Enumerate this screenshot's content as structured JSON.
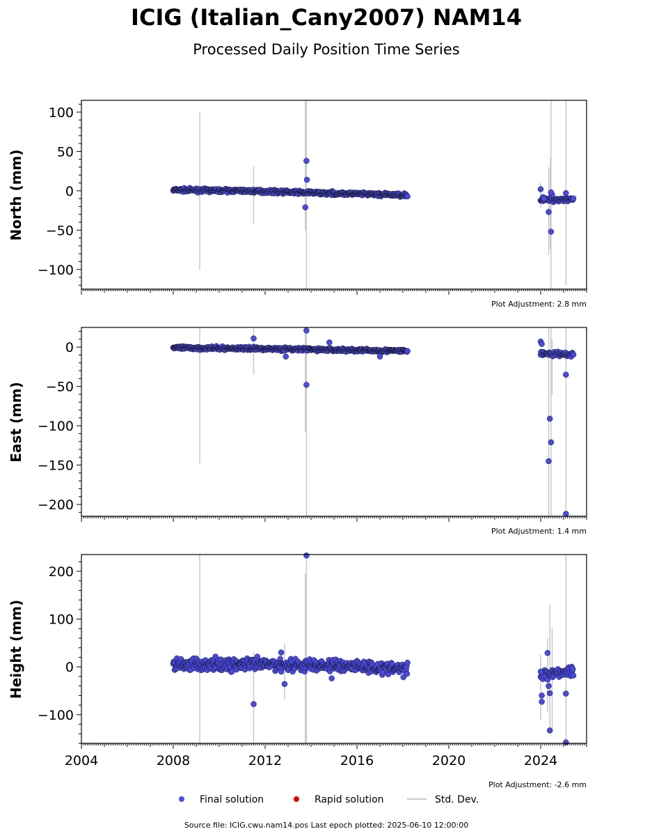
{
  "title": "ICIG (Italian_Cany2007) NAM14",
  "subtitle": "Processed Daily Position Time Series",
  "source_line": "Source file: ICIG.cwu.nam14.pos  Last epoch plotted: 2025-06-10 12:00:00",
  "legend": [
    {
      "label": "Final solution",
      "color": "#4a4ae6",
      "marker": "circle"
    },
    {
      "label": "Rapid solution",
      "color": "#e00000",
      "marker": "circle"
    },
    {
      "label": "Std. Dev.",
      "color": "#c8c8c8",
      "marker": "line"
    }
  ],
  "chart_data": [
    {
      "type": "scatter",
      "ylabel": "North (mm)",
      "adjustment": "Plot Adjustment: 2.8 mm",
      "xlim": [
        2004,
        2026
      ],
      "ylim": [
        -125,
        115
      ],
      "yticks": [
        100,
        50,
        0,
        -50,
        -100
      ],
      "ytick_labels": [
        "100",
        "50",
        "0",
        "−50",
        "−100"
      ],
      "trend": [
        [
          2008.0,
          1.0
        ],
        [
          2011.0,
          0.0
        ],
        [
          2014.0,
          -2.5
        ],
        [
          2018.2,
          -5.5
        ]
      ],
      "scatter_sd": 1.4,
      "late_trend": [
        [
          2024.0,
          -12.0
        ],
        [
          2025.45,
          -10.0
        ]
      ],
      "late_sd": 2.0,
      "outliers": [
        [
          2013.8,
          38
        ],
        [
          2013.82,
          14
        ],
        [
          2013.75,
          -21
        ],
        [
          2024.0,
          2
        ],
        [
          2024.1,
          -8
        ],
        [
          2024.15,
          -10
        ],
        [
          2024.35,
          -27
        ],
        [
          2024.45,
          -52
        ],
        [
          2024.5,
          -5
        ],
        [
          2024.45,
          -2
        ],
        [
          2025.1,
          -3
        ]
      ],
      "errorbars": [
        [
          2009.15,
          -100,
          100
        ],
        [
          2011.5,
          -42,
          31
        ],
        [
          2013.75,
          -50,
          115
        ],
        [
          2013.8,
          -125,
          115
        ],
        [
          2024.0,
          -22,
          10
        ],
        [
          2024.35,
          -82,
          30
        ],
        [
          2024.45,
          -125,
          115
        ],
        [
          2024.42,
          -75,
          42
        ],
        [
          2025.1,
          -120,
          115
        ]
      ]
    },
    {
      "type": "scatter",
      "ylabel": "East (mm)",
      "adjustment": "Plot Adjustment: 1.4 mm",
      "xlim": [
        2004,
        2026
      ],
      "ylim": [
        -215,
        25
      ],
      "yticks": [
        0,
        -50,
        -100,
        -150,
        -200
      ],
      "ytick_labels": [
        "0",
        "−50",
        "−100",
        "−150",
        "−200"
      ],
      "trend": [
        [
          2008.0,
          -1.0
        ],
        [
          2012.0,
          -2.0
        ],
        [
          2016.0,
          -4.0
        ],
        [
          2018.2,
          -5.0
        ]
      ],
      "scatter_sd": 1.4,
      "late_trend": [
        [
          2024.0,
          -8.0
        ],
        [
          2025.45,
          -10.0
        ]
      ],
      "late_sd": 2.0,
      "outliers": [
        [
          2011.5,
          11
        ],
        [
          2013.8,
          21
        ],
        [
          2013.8,
          -48
        ],
        [
          2014.8,
          6
        ],
        [
          2012.9,
          -12
        ],
        [
          2024.0,
          7
        ],
        [
          2024.05,
          4
        ],
        [
          2024.35,
          -145
        ],
        [
          2024.4,
          -91
        ],
        [
          2024.45,
          -121
        ],
        [
          2025.1,
          -35
        ],
        [
          2025.1,
          -212
        ],
        [
          2017.0,
          -12
        ]
      ],
      "errorbars": [
        [
          2009.15,
          -148,
          25
        ],
        [
          2011.5,
          -35,
          25
        ],
        [
          2013.75,
          -108,
          25
        ],
        [
          2013.8,
          -215,
          25
        ],
        [
          2024.35,
          -215,
          25
        ],
        [
          2024.45,
          -215,
          25
        ],
        [
          2024.5,
          -60,
          10
        ],
        [
          2025.1,
          -215,
          25
        ]
      ]
    },
    {
      "type": "scatter",
      "ylabel": "Height (mm)",
      "adjustment": "Plot Adjustment: -2.6 mm",
      "xlim": [
        2004,
        2026
      ],
      "ylim": [
        -160,
        235
      ],
      "yticks": [
        200,
        100,
        0,
        -100
      ],
      "ytick_labels": [
        "200",
        "100",
        "0",
        "−100"
      ],
      "xticks": [
        2004,
        2008,
        2012,
        2016,
        2020,
        2024
      ],
      "trend": [
        [
          2008.0,
          5.0
        ],
        [
          2012.0,
          5.0
        ],
        [
          2016.0,
          2.0
        ],
        [
          2018.2,
          -5.0
        ]
      ],
      "scatter_sd": 9.0,
      "late_trend": [
        [
          2024.0,
          -15.0
        ],
        [
          2025.45,
          -8.0
        ]
      ],
      "late_sd": 8.0,
      "outliers": [
        [
          2011.5,
          -78
        ],
        [
          2012.85,
          -36
        ],
        [
          2013.8,
          233
        ],
        [
          2024.0,
          -10
        ],
        [
          2024.05,
          -60
        ],
        [
          2024.05,
          -73
        ],
        [
          2024.3,
          29
        ],
        [
          2024.4,
          -133
        ],
        [
          2024.35,
          -40
        ],
        [
          2024.4,
          -55
        ],
        [
          2025.1,
          -56
        ],
        [
          2025.1,
          -158
        ],
        [
          2014.9,
          -24
        ],
        [
          2012.7,
          30
        ]
      ],
      "errorbars": [
        [
          2009.15,
          -160,
          235
        ],
        [
          2011.5,
          -160,
          30
        ],
        [
          2012.85,
          -68,
          48
        ],
        [
          2013.75,
          -160,
          195
        ],
        [
          2013.8,
          -160,
          235
        ],
        [
          2024.0,
          -112,
          25
        ],
        [
          2024.3,
          -95,
          60
        ],
        [
          2024.4,
          -140,
          130
        ],
        [
          2024.5,
          -130,
          80
        ],
        [
          2025.1,
          -160,
          235
        ]
      ]
    }
  ]
}
